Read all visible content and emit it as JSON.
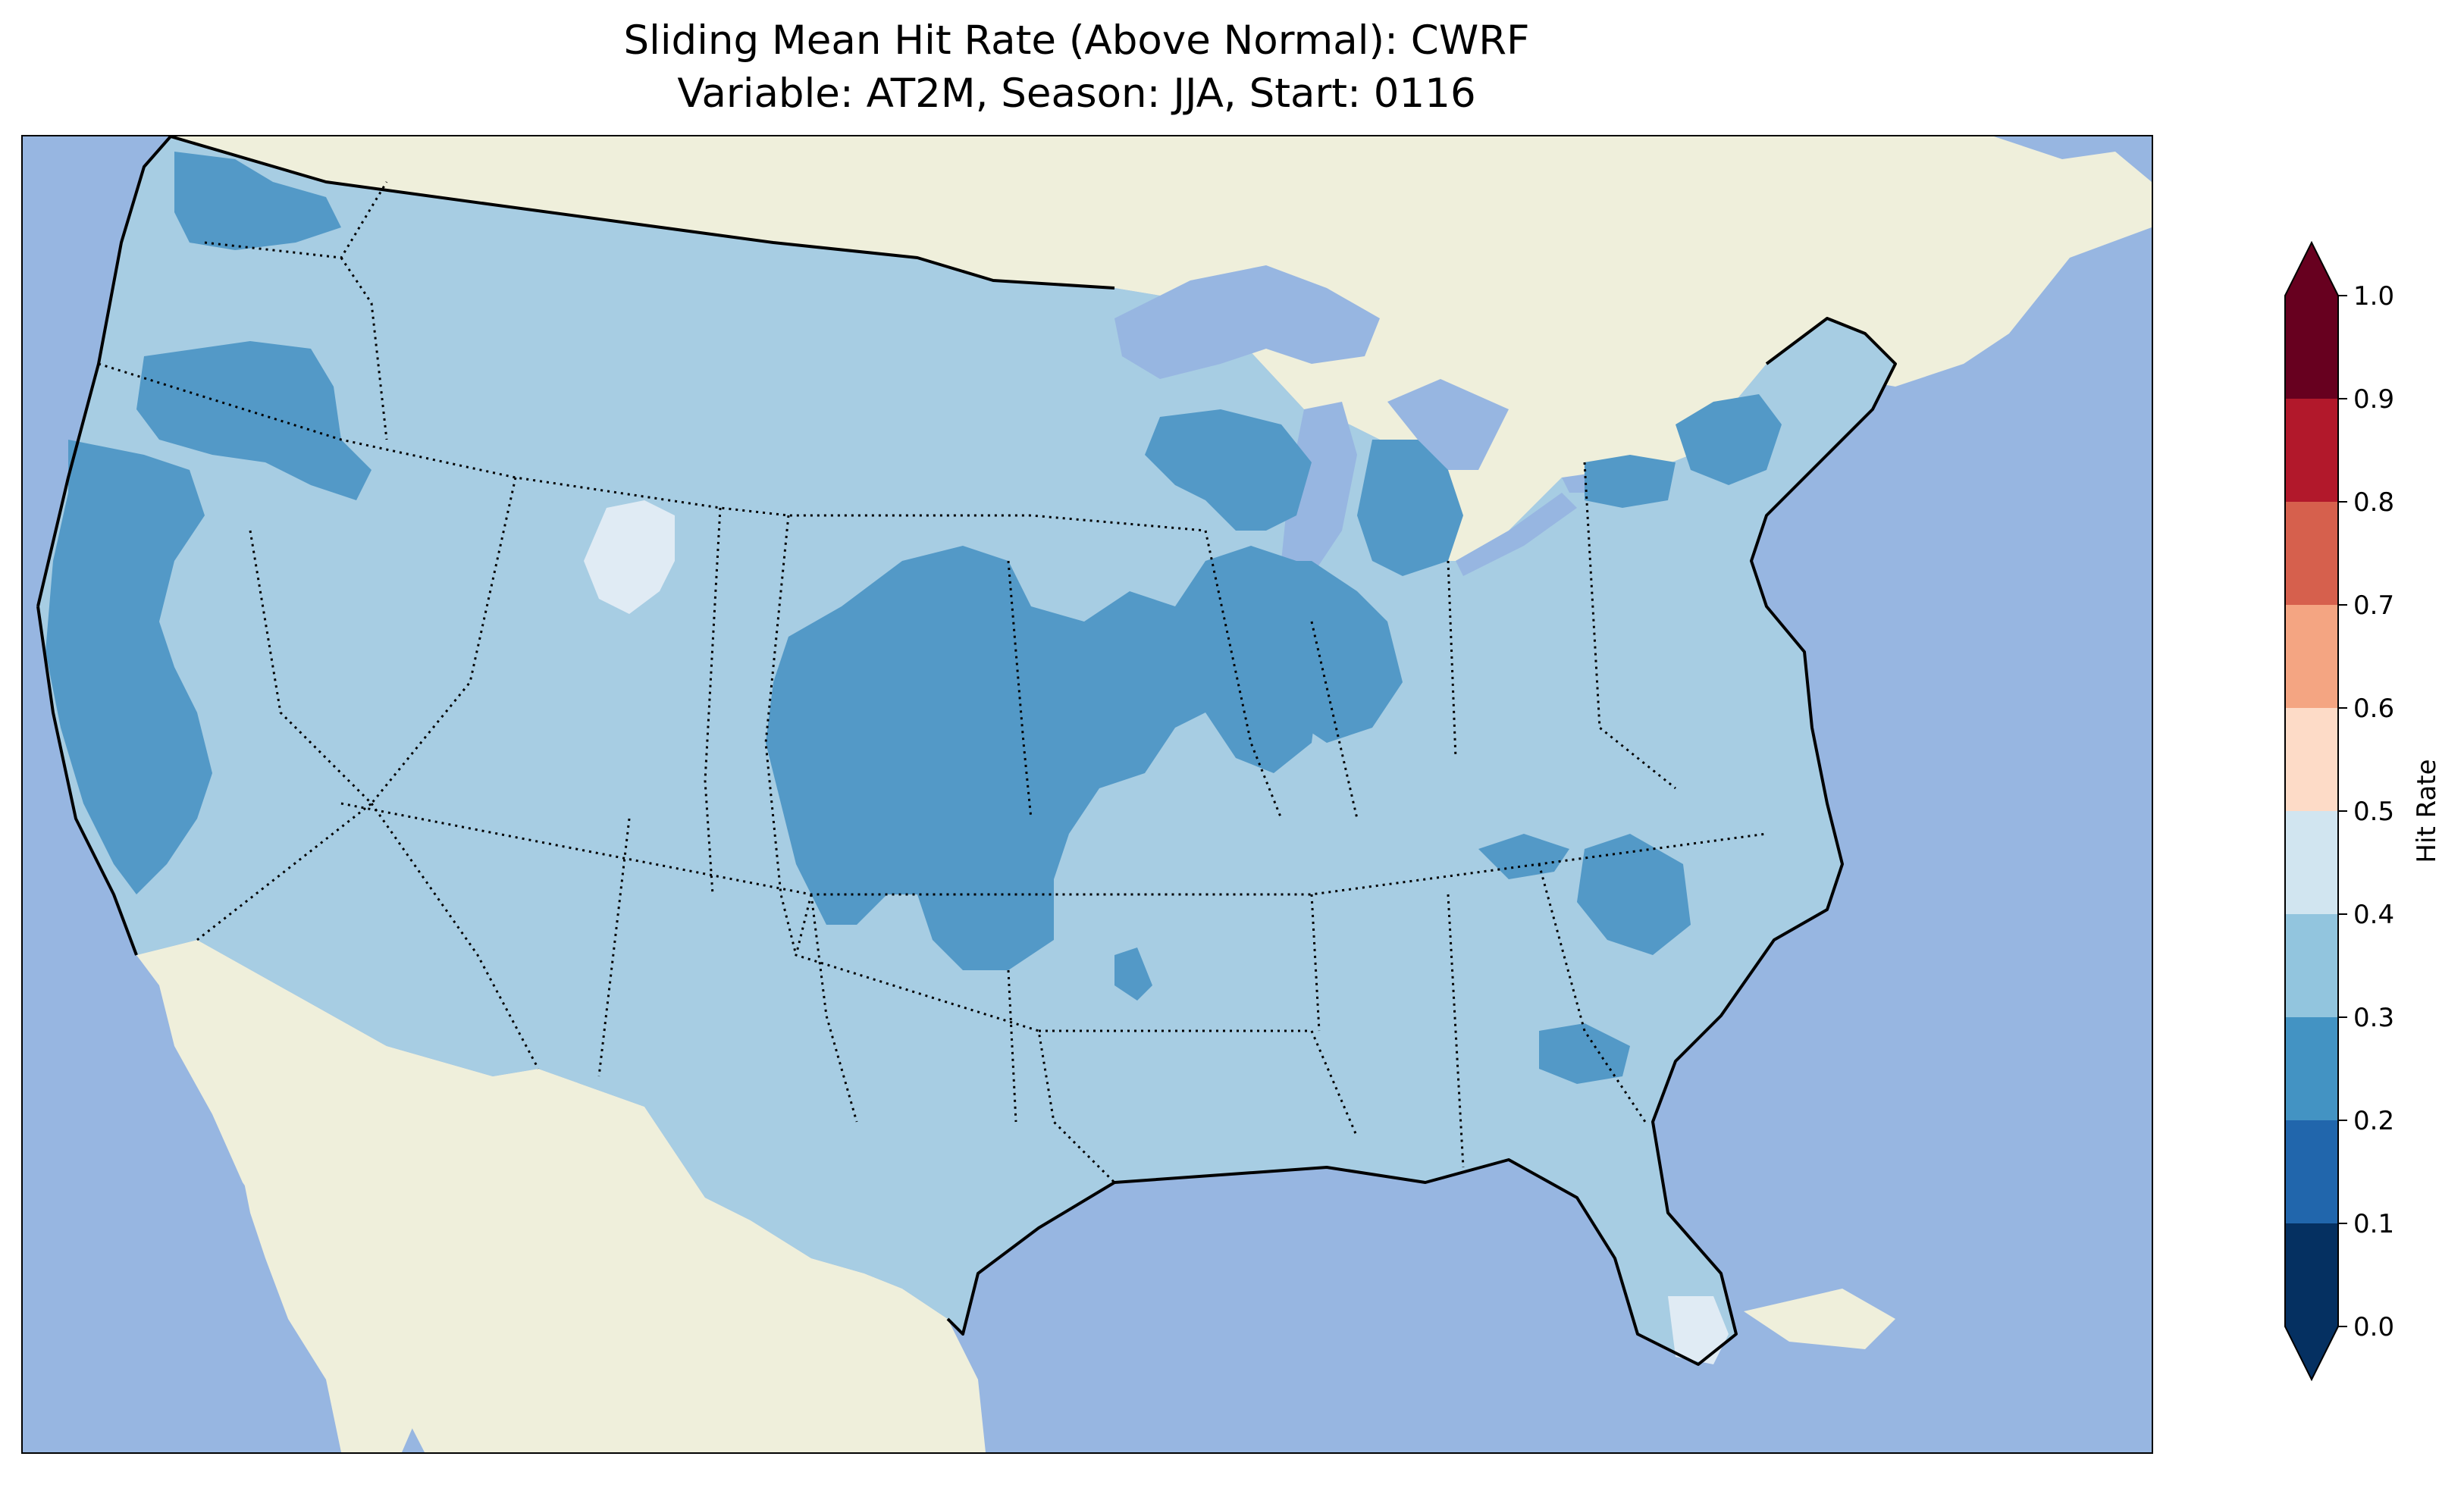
{
  "title": {
    "line1": "Sliding Mean Hit Rate (Above Normal): CWRF",
    "line2": "Variable: AT2M, Season: JJA, Start: 0116"
  },
  "map": {
    "region": "contiguous-united-states",
    "projection": "lambert-conformal",
    "colors": {
      "ocean": "#97b6e1",
      "land": "#efefdb",
      "great_lakes": "#97b6e1",
      "coastline": "#000000",
      "state_borders": "#000000"
    },
    "field_classes": [
      {
        "range": [
          0.3,
          0.4
        ],
        "color": "#a7cde3",
        "area": "most of the domain"
      },
      {
        "range": [
          0.2,
          0.3
        ],
        "color": "#5399c7",
        "area": "central plains, upper midwest, west coast, northwest, northeast"
      },
      {
        "range": [
          0.4,
          0.5
        ],
        "color": "#e0ebf4",
        "area": "wyoming spot, south florida"
      }
    ]
  },
  "colorbar": {
    "label": "Hit Rate",
    "extend": "both",
    "ticks": [
      "0.0",
      "0.1",
      "0.2",
      "0.3",
      "0.4",
      "0.5",
      "0.6",
      "0.7",
      "0.8",
      "0.9",
      "1.0"
    ],
    "boundaries": [
      0.0,
      0.1,
      0.2,
      0.3,
      0.4,
      0.5,
      0.6,
      0.7,
      0.8,
      0.9,
      1.0
    ],
    "colors": [
      "#053061",
      "#2166ac",
      "#4393c3",
      "#92c5de",
      "#d1e5f0",
      "#f7f7f7",
      "#fddbc7",
      "#f4a582",
      "#d6604d",
      "#b2182b",
      "#67001f"
    ],
    "under_color": "#053061",
    "over_color": "#67001f"
  }
}
